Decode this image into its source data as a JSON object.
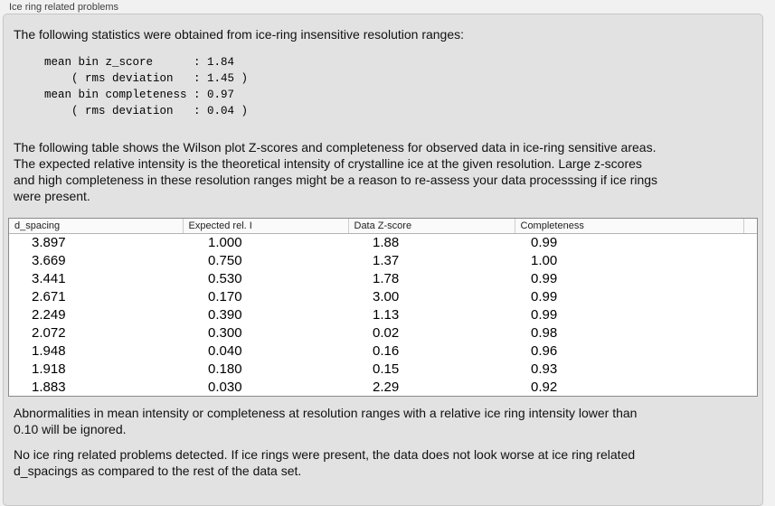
{
  "colors": {
    "page_bg": "#f1f1f1",
    "panel_bg": "#e2e2e2",
    "panel_border": "#c6c6c6",
    "table_border": "#8a8a8a",
    "table_header_bg": "#fafafa",
    "text": "#111111",
    "label_text": "#3f3f3f"
  },
  "header": {
    "title": "Ice ring related problems"
  },
  "panel": {
    "intro": "The following statistics were obtained from ice-ring insensitive resolution ranges:",
    "stats_block": "mean bin z_score      : 1.84\n    ( rms deviation   : 1.45 )\nmean bin completeness : 0.97\n    ( rms deviation   : 0.04 )",
    "table_description": "The following table shows the Wilson plot Z-scores and completeness for observed data in ice-ring sensitive areas.\nThe expected relative intensity is the theoretical intensity of crystalline ice at the given resolution. Large z-scores\nand high completeness in these resolution ranges might be a reason to re-assess your data processsing if ice rings\nwere present.",
    "ignore_note": "Abnormalities in mean intensity or completeness at resolution ranges with a relative ice ring intensity lower than\n0.10 will be ignored.",
    "conclusion": "No ice ring related problems detected. If ice rings were present, the data does not look worse at ice ring related\nd_spacings as compared to the rest of the data set."
  },
  "table": {
    "headers": [
      "d_spacing",
      "Expected rel. I",
      "Data Z-score",
      "Completeness"
    ],
    "rows": [
      [
        "3.897",
        "1.000",
        "1.88",
        "0.99"
      ],
      [
        "3.669",
        "0.750",
        "1.37",
        "1.00"
      ],
      [
        "3.441",
        "0.530",
        "1.78",
        "0.99"
      ],
      [
        "2.671",
        "0.170",
        "3.00",
        "0.99"
      ],
      [
        "2.249",
        "0.390",
        "1.13",
        "0.99"
      ],
      [
        "2.072",
        "0.300",
        "0.02",
        "0.98"
      ],
      [
        "1.948",
        "0.040",
        "0.16",
        "0.96"
      ],
      [
        "1.918",
        "0.180",
        "0.15",
        "0.93"
      ],
      [
        "1.883",
        "0.030",
        "2.29",
        "0.92"
      ]
    ]
  }
}
